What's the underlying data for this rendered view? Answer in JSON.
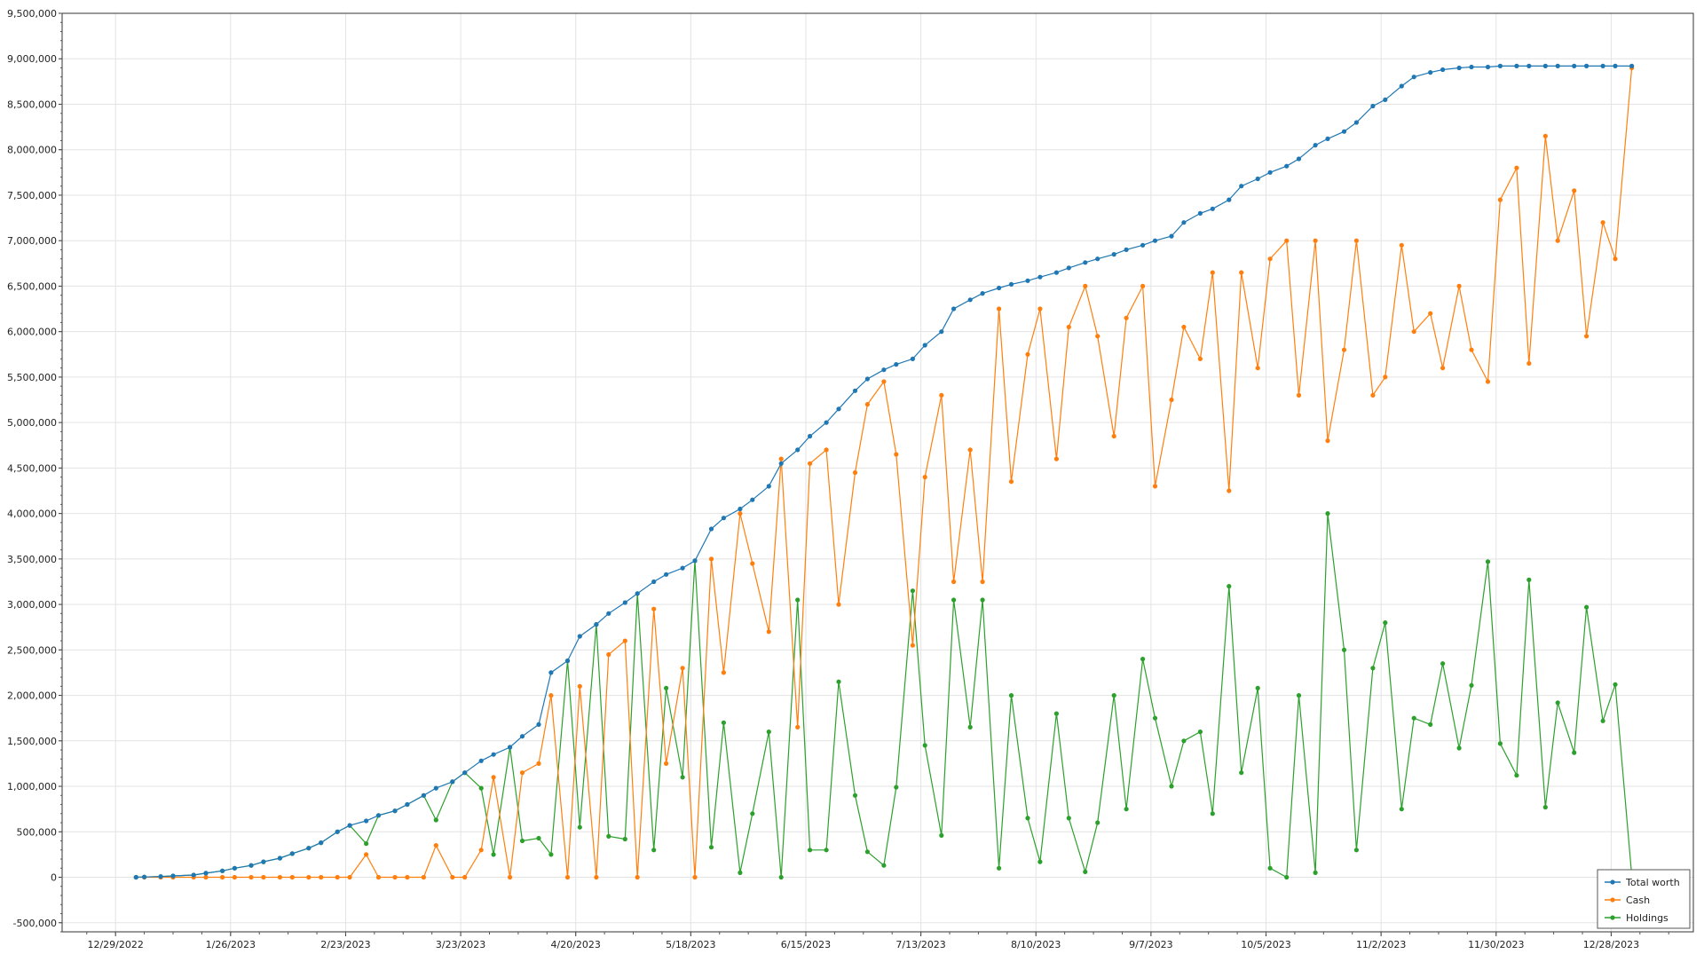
{
  "chart_data": {
    "type": "line",
    "title": "",
    "xlabel": "",
    "ylabel": "",
    "ylim": [
      -600000,
      9500000
    ],
    "xlim": [
      "2022-12-16",
      "2024-01-17"
    ],
    "x_ticks": [
      "12/29/2022",
      "1/26/2023",
      "2/23/2023",
      "3/23/2023",
      "4/20/2023",
      "5/18/2023",
      "6/15/2023",
      "7/13/2023",
      "8/10/2023",
      "9/7/2023",
      "10/5/2023",
      "11/2/2023",
      "11/30/2023",
      "12/28/2023"
    ],
    "x_tick_dates": [
      "2022-12-29",
      "2023-01-26",
      "2023-02-23",
      "2023-03-23",
      "2023-04-20",
      "2023-05-18",
      "2023-06-15",
      "2023-07-13",
      "2023-08-10",
      "2023-09-07",
      "2023-10-05",
      "2023-11-02",
      "2023-11-30",
      "2023-12-28"
    ],
    "y_ticks": [
      "-500,000",
      "0",
      "500,000",
      "1,000,000",
      "1,500,000",
      "2,000,000",
      "2,500,000",
      "3,000,000",
      "3,500,000",
      "4,000,000",
      "4,500,000",
      "5,000,000",
      "5,500,000",
      "6,000,000",
      "6,500,000",
      "7,000,000",
      "7,500,000",
      "8,000,000",
      "8,500,000",
      "9,000,000",
      "9,500,000"
    ],
    "y_tick_values": [
      -500000,
      0,
      500000,
      1000000,
      1500000,
      2000000,
      2500000,
      3000000,
      3500000,
      4000000,
      4500000,
      5000000,
      5500000,
      6000000,
      6500000,
      7000000,
      7500000,
      8000000,
      8500000,
      9000000,
      9500000
    ],
    "grid": true,
    "legend_position": "bottom-right",
    "dates": [
      "2023-01-03",
      "2023-01-05",
      "2023-01-09",
      "2023-01-12",
      "2023-01-17",
      "2023-01-20",
      "2023-01-24",
      "2023-01-27",
      "2023-01-31",
      "2023-02-03",
      "2023-02-07",
      "2023-02-10",
      "2023-02-14",
      "2023-02-17",
      "2023-02-21",
      "2023-02-24",
      "2023-02-28",
      "2023-03-03",
      "2023-03-07",
      "2023-03-10",
      "2023-03-14",
      "2023-03-17",
      "2023-03-21",
      "2023-03-24",
      "2023-03-28",
      "2023-03-31",
      "2023-04-04",
      "2023-04-07",
      "2023-04-11",
      "2023-04-14",
      "2023-04-18",
      "2023-04-21",
      "2023-04-25",
      "2023-04-28",
      "2023-05-02",
      "2023-05-05",
      "2023-05-09",
      "2023-05-12",
      "2023-05-16",
      "2023-05-19",
      "2023-05-23",
      "2023-05-26",
      "2023-05-30",
      "2023-06-02",
      "2023-06-06",
      "2023-06-09",
      "2023-06-13",
      "2023-06-16",
      "2023-06-20",
      "2023-06-23",
      "2023-06-27",
      "2023-06-30",
      "2023-07-04",
      "2023-07-07",
      "2023-07-11",
      "2023-07-14",
      "2023-07-18",
      "2023-07-21",
      "2023-07-25",
      "2023-07-28",
      "2023-08-01",
      "2023-08-04",
      "2023-08-08",
      "2023-08-11",
      "2023-08-15",
      "2023-08-18",
      "2023-08-22",
      "2023-08-25",
      "2023-08-29",
      "2023-09-01",
      "2023-09-05",
      "2023-09-08",
      "2023-09-12",
      "2023-09-15",
      "2023-09-19",
      "2023-09-22",
      "2023-09-26",
      "2023-09-29",
      "2023-10-03",
      "2023-10-06",
      "2023-10-10",
      "2023-10-13",
      "2023-10-17",
      "2023-10-20",
      "2023-10-24",
      "2023-10-27",
      "2023-10-31",
      "2023-11-03",
      "2023-11-07",
      "2023-11-10",
      "2023-11-14",
      "2023-11-17",
      "2023-11-21",
      "2023-11-24",
      "2023-11-28",
      "2023-12-01",
      "2023-12-05",
      "2023-12-08",
      "2023-12-12",
      "2023-12-15",
      "2023-12-19",
      "2023-12-22",
      "2023-12-26",
      "2023-12-29",
      "2024-01-02"
    ],
    "series": [
      {
        "name": "Total worth",
        "color": "#1f77b4",
        "values": [
          0,
          3000,
          8000,
          15000,
          25000,
          45000,
          70000,
          100000,
          130000,
          170000,
          210000,
          260000,
          320000,
          380000,
          500000,
          570000,
          620000,
          680000,
          730000,
          800000,
          900000,
          980000,
          1050000,
          1150000,
          1280000,
          1350000,
          1430000,
          1550000,
          1680000,
          2250000,
          2380000,
          2650000,
          2780000,
          2900000,
          3020000,
          3120000,
          3250000,
          3330000,
          3400000,
          3480000,
          3830000,
          3950000,
          4050000,
          4150000,
          4300000,
          4550000,
          4700000,
          4850000,
          5000000,
          5150000,
          5350000,
          5480000,
          5580000,
          5640000,
          5700000,
          5850000,
          6000000,
          6250000,
          6350000,
          6420000,
          6480000,
          6520000,
          6560000,
          6600000,
          6650000,
          6700000,
          6760000,
          6800000,
          6850000,
          6900000,
          6950000,
          7000000,
          7050000,
          7200000,
          7300000,
          7350000,
          7450000,
          7600000,
          7680000,
          7750000,
          7820000,
          7900000,
          8050000,
          8120000,
          8200000,
          8300000,
          8480000,
          8550000,
          8700000,
          8800000,
          8850000,
          8880000,
          8900000,
          8910000,
          8910000,
          8920000,
          8920000,
          8920000,
          8920000,
          8920000,
          8920000,
          8920000,
          8920000,
          8920000,
          8920000
        ]
      },
      {
        "name": "Cash",
        "color": "#ff7f0e",
        "values": [
          0,
          0,
          0,
          0,
          0,
          0,
          0,
          0,
          0,
          0,
          0,
          0,
          0,
          0,
          0,
          0,
          250000,
          0,
          0,
          0,
          0,
          350000,
          0,
          0,
          300000,
          1100000,
          0,
          1150000,
          1250000,
          2000000,
          0,
          2100000,
          0,
          2450000,
          2600000,
          0,
          2950000,
          1250000,
          2300000,
          0,
          3500000,
          2250000,
          4000000,
          3450000,
          2700000,
          4600000,
          1650000,
          4550000,
          4700000,
          3000000,
          4450000,
          5200000,
          5450000,
          4650000,
          2550000,
          4400000,
          5300000,
          3250000,
          4700000,
          3250000,
          6250000,
          4350000,
          5750000,
          6250000,
          4600000,
          6050000,
          6500000,
          5950000,
          4850000,
          6150000,
          6500000,
          4300000,
          5250000,
          6050000,
          5700000,
          6650000,
          4250000,
          6650000,
          5600000,
          6800000,
          7000000,
          5300000,
          7000000,
          4800000,
          5800000,
          7000000,
          5300000,
          5500000,
          6950000,
          6000000,
          6200000,
          5600000,
          6500000,
          5800000,
          5450000,
          7450000,
          7800000,
          5650000,
          8150000,
          7000000,
          7550000,
          5950000,
          7200000,
          6800000,
          8900000
        ]
      },
      {
        "name": "Holdings",
        "color": "#2ca02c",
        "values": [
          0,
          3000,
          8000,
          15000,
          25000,
          45000,
          70000,
          100000,
          130000,
          170000,
          210000,
          260000,
          320000,
          380000,
          500000,
          570000,
          370000,
          680000,
          730000,
          800000,
          900000,
          630000,
          1050000,
          1150000,
          980000,
          250000,
          1430000,
          400000,
          430000,
          250000,
          2380000,
          550000,
          2780000,
          450000,
          420000,
          3120000,
          300000,
          2080000,
          1100000,
          3480000,
          330000,
          1700000,
          50000,
          700000,
          1600000,
          0,
          3050000,
          300000,
          300000,
          2150000,
          900000,
          280000,
          130000,
          990000,
          3150000,
          1450000,
          460000,
          3050000,
          1650000,
          3050000,
          100000,
          2000000,
          650000,
          170000,
          1800000,
          650000,
          60000,
          600000,
          2000000,
          750000,
          2400000,
          1750000,
          1000000,
          1500000,
          1600000,
          700000,
          3200000,
          1150000,
          2080000,
          100000,
          0,
          2000000,
          50000,
          4000000,
          2500000,
          300000,
          2300000,
          2800000,
          750000,
          1750000,
          1680000,
          2350000,
          1420000,
          2110000,
          3470000,
          1470000,
          1120000,
          3270000,
          770000,
          1920000,
          1370000,
          2970000,
          1720000,
          2120000,
          20000
        ]
      }
    ]
  },
  "legend": {
    "items": [
      {
        "label": "Total worth",
        "color": "#1f77b4"
      },
      {
        "label": "Cash",
        "color": "#ff7f0e"
      },
      {
        "label": "Holdings",
        "color": "#2ca02c"
      }
    ]
  }
}
